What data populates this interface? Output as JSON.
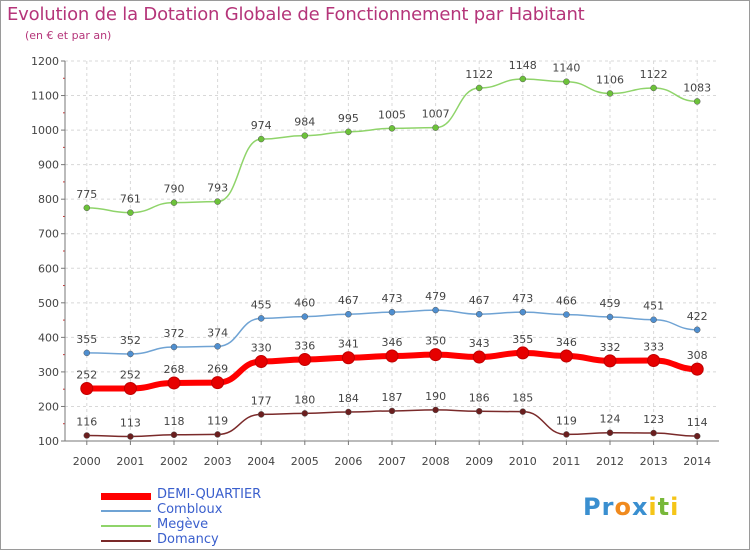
{
  "header": {
    "title": "Evolution de la Dotation Globale de Fonctionnement par Habitant",
    "subtitle": "(en € et par an)"
  },
  "logo": {
    "text": "Proxiti"
  },
  "chart_data": {
    "type": "line",
    "title": "Evolution de la Dotation Globale de Fonctionnement par Habitant",
    "subtitle": "(en € et par an)",
    "xlabel": "",
    "ylabel": "",
    "x": [
      2000,
      2001,
      2002,
      2003,
      2004,
      2005,
      2006,
      2007,
      2008,
      2009,
      2010,
      2011,
      2012,
      2013,
      2014
    ],
    "x_labels": [
      "2000",
      "2001",
      "2002",
      "2003",
      "2004",
      "2005",
      "2006",
      "2007",
      "2008",
      "2009",
      "2010",
      "2011",
      "2012",
      "2013",
      "2014"
    ],
    "ylim": [
      100,
      1200
    ],
    "yticks": [
      100,
      200,
      300,
      400,
      500,
      600,
      700,
      800,
      900,
      1000,
      1100,
      1200
    ],
    "grid": true,
    "legend_position": "bottom-left",
    "series": [
      {
        "name": "DEMI-QUARTIER",
        "color": "#ff0000",
        "marker": "#e60000",
        "style": "thick",
        "values": [
          252,
          252,
          268,
          269,
          330,
          336,
          341,
          346,
          350,
          343,
          355,
          346,
          332,
          333,
          308
        ]
      },
      {
        "name": "Combloux",
        "color": "#6fa3d4",
        "marker": "#4f8fd0",
        "style": "thin",
        "values": [
          355,
          352,
          372,
          374,
          455,
          460,
          467,
          473,
          479,
          467,
          473,
          466,
          459,
          451,
          422
        ]
      },
      {
        "name": "Megève",
        "color": "#8fd46a",
        "marker": "#6cc23a",
        "style": "thin",
        "values": [
          775,
          761,
          790,
          793,
          974,
          984,
          995,
          1005,
          1007,
          1122,
          1148,
          1140,
          1106,
          1122,
          1083
        ]
      },
      {
        "name": "Domancy",
        "color": "#7a2a2a",
        "marker": "#6b1f1f",
        "style": "thin",
        "values": [
          116,
          113,
          118,
          119,
          177,
          180,
          184,
          187,
          190,
          186,
          185,
          119,
          124,
          123,
          114
        ]
      }
    ]
  }
}
